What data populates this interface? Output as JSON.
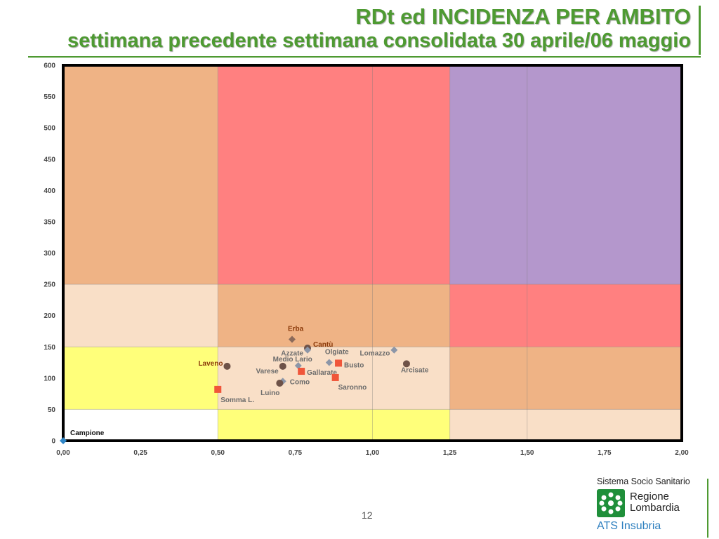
{
  "header": {
    "title": "RDt ed INCIDENZA PER AMBITO",
    "subtitle": "settimana precedente settimana consolidata 30 aprile/06 maggio"
  },
  "footer": {
    "page_number": "12",
    "brand_system": "Sistema Socio Sanitario",
    "brand_region_line1": "Regione",
    "brand_region_line2": "Lombardia",
    "brand_agency": "ATS Insubria"
  },
  "chart_data": {
    "type": "scatter",
    "title": "",
    "xlabel": "",
    "ylabel": "",
    "xlim": [
      0,
      2
    ],
    "ylim": [
      0,
      600
    ],
    "xticks": [
      "0,00",
      "0,25",
      "0,50",
      "0,75",
      "1,00",
      "1,25",
      "1,50",
      "1,75",
      "2,00"
    ],
    "yticks": [
      "0",
      "50",
      "100",
      "150",
      "200",
      "250",
      "300",
      "350",
      "400",
      "450",
      "500",
      "550",
      "600"
    ],
    "grid": true,
    "zone_colors": {
      "white": "#ffffff",
      "yellow": "#ffff7a",
      "peach": "#f9dfc7",
      "orange": "#efb385",
      "red": "#ff8080",
      "purple": "#b497cc"
    },
    "zones": [
      {
        "x": [
          0,
          0.5
        ],
        "y": [
          0,
          50
        ],
        "color": "white"
      },
      {
        "x": [
          0.5,
          1.25
        ],
        "y": [
          0,
          50
        ],
        "color": "yellow"
      },
      {
        "x": [
          1.25,
          2
        ],
        "y": [
          0,
          50
        ],
        "color": "peach"
      },
      {
        "x": [
          0,
          0.5
        ],
        "y": [
          50,
          150
        ],
        "color": "yellow"
      },
      {
        "x": [
          0.5,
          1.25
        ],
        "y": [
          50,
          150
        ],
        "color": "peach"
      },
      {
        "x": [
          1.25,
          2
        ],
        "y": [
          50,
          150
        ],
        "color": "orange"
      },
      {
        "x": [
          0,
          0.5
        ],
        "y": [
          150,
          250
        ],
        "color": "peach"
      },
      {
        "x": [
          0.5,
          1.25
        ],
        "y": [
          150,
          250
        ],
        "color": "orange"
      },
      {
        "x": [
          1.25,
          2
        ],
        "y": [
          150,
          250
        ],
        "color": "red"
      },
      {
        "x": [
          0,
          0.5
        ],
        "y": [
          250,
          600
        ],
        "color": "orange"
      },
      {
        "x": [
          0.5,
          1.25
        ],
        "y": [
          250,
          600
        ],
        "color": "red"
      },
      {
        "x": [
          1.25,
          2
        ],
        "y": [
          250,
          600
        ],
        "color": "purple"
      }
    ],
    "marker_colors": {
      "circle": "#6e5248",
      "diamond_grey": "#8c96a8",
      "diamond_brown": "#8b6a5a",
      "square": "#f0563a",
      "diamond_blue": "#2f86c8"
    },
    "points": [
      {
        "label": "Erba",
        "x": 0.74,
        "y": 162,
        "marker": "diamond_brown",
        "label_color": "#8b3a0a"
      },
      {
        "label": "Cantù",
        "x": 0.79,
        "y": 148,
        "marker": "circle",
        "label_color": "#8b3a0a"
      },
      {
        "label": "Azzate",
        "x": 0.79,
        "y": 145,
        "marker": "diamond_grey",
        "label_color": "#6b6b6b"
      },
      {
        "label": "Lomazzo",
        "x": 1.07,
        "y": 145,
        "marker": "diamond_grey",
        "label_color": "#6b6b6b"
      },
      {
        "label": "Olgiate",
        "x": 0.86,
        "y": 125,
        "marker": "diamond_grey",
        "label_color": "#6b6b6b"
      },
      {
        "label": "Busto",
        "x": 0.89,
        "y": 124,
        "marker": "square",
        "label_color": "#6b6b6b"
      },
      {
        "label": "Arcisate",
        "x": 1.11,
        "y": 123,
        "marker": "circle",
        "label_color": "#6b6b6b"
      },
      {
        "label": "Medio Lario",
        "x": 0.76,
        "y": 120,
        "marker": "diamond_grey",
        "label_color": "#6b6b6b"
      },
      {
        "label": "Varese",
        "x": 0.71,
        "y": 119,
        "marker": "circle",
        "label_color": "#6b6b6b"
      },
      {
        "label": "Laveno",
        "x": 0.53,
        "y": 119,
        "marker": "circle",
        "label_color": "#8b3a0a"
      },
      {
        "label": "Gallarate",
        "x": 0.77,
        "y": 111,
        "marker": "square",
        "label_color": "#6b6b6b"
      },
      {
        "label": "Saronno",
        "x": 0.88,
        "y": 101,
        "marker": "square",
        "label_color": "#6b6b6b"
      },
      {
        "label": "Como",
        "x": 0.71,
        "y": 95,
        "marker": "diamond_grey",
        "label_color": "#6b6b6b"
      },
      {
        "label": "Luino",
        "x": 0.7,
        "y": 92,
        "marker": "circle",
        "label_color": "#6b6b6b"
      },
      {
        "label": "Somma L.",
        "x": 0.5,
        "y": 82,
        "marker": "square",
        "label_color": "#6b6b6b"
      },
      {
        "label": "Campione",
        "x": 0.0,
        "y": 0,
        "marker": "diamond_blue",
        "label_color": "#111111"
      }
    ]
  }
}
